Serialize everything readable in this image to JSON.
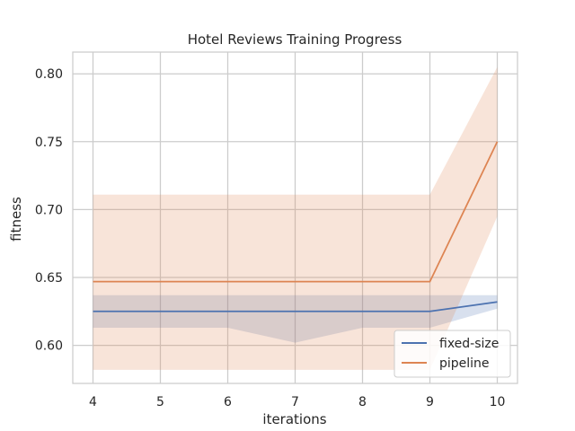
{
  "chart_data": {
    "type": "line",
    "title": "Hotel Reviews Training Progress",
    "xlabel": "iterations",
    "ylabel": "fitness",
    "x": [
      4,
      5,
      6,
      7,
      8,
      9,
      10
    ],
    "xlim": [
      3.7,
      10.3
    ],
    "ylim": [
      0.572,
      0.816
    ],
    "xticks": [
      4,
      5,
      6,
      7,
      8,
      9,
      10
    ],
    "yticks": [
      0.6,
      0.65,
      0.7,
      0.75,
      0.8
    ],
    "ytick_labels": [
      "0.60",
      "0.65",
      "0.70",
      "0.75",
      "0.80"
    ],
    "grid": true,
    "legend_position": "lower-right",
    "series": [
      {
        "name": "fixed-size",
        "color": "#4c72b0",
        "values": [
          0.625,
          0.625,
          0.625,
          0.625,
          0.625,
          0.625,
          0.632
        ],
        "band_low": [
          0.613,
          0.613,
          0.613,
          0.602,
          0.613,
          0.613,
          0.627
        ],
        "band_high": [
          0.637,
          0.637,
          0.637,
          0.637,
          0.637,
          0.637,
          0.637
        ]
      },
      {
        "name": "pipeline",
        "color": "#dd8452",
        "values": [
          0.647,
          0.647,
          0.647,
          0.647,
          0.647,
          0.647,
          0.75
        ],
        "band_low": [
          0.582,
          0.582,
          0.582,
          0.582,
          0.582,
          0.582,
          0.695
        ],
        "band_high": [
          0.711,
          0.711,
          0.711,
          0.711,
          0.711,
          0.711,
          0.805
        ]
      }
    ]
  }
}
